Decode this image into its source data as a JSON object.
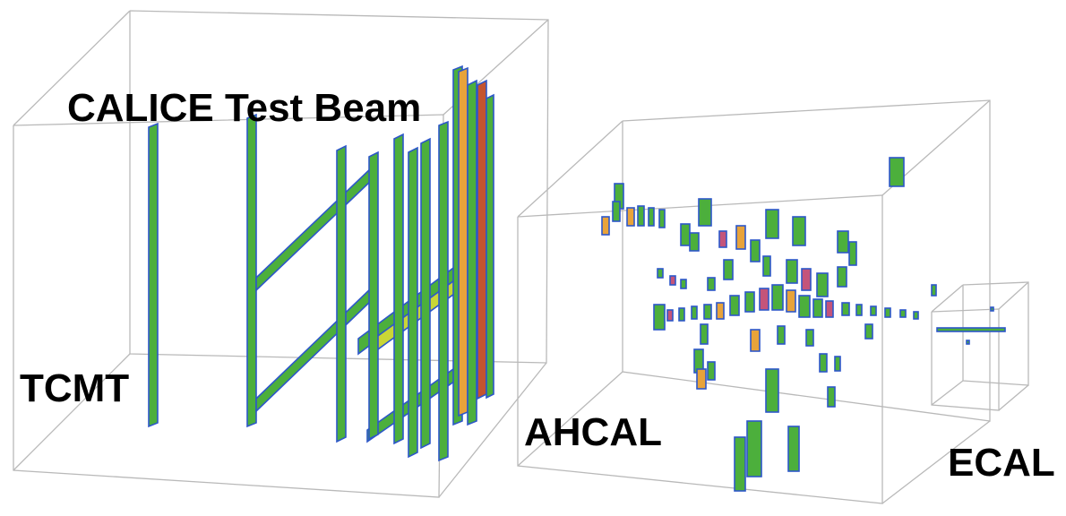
{
  "title": "CALICE Test Beam",
  "labels": {
    "tcmt": "TCMT",
    "ahcal": "AHCAL",
    "ecal": "ECAL"
  }
}
